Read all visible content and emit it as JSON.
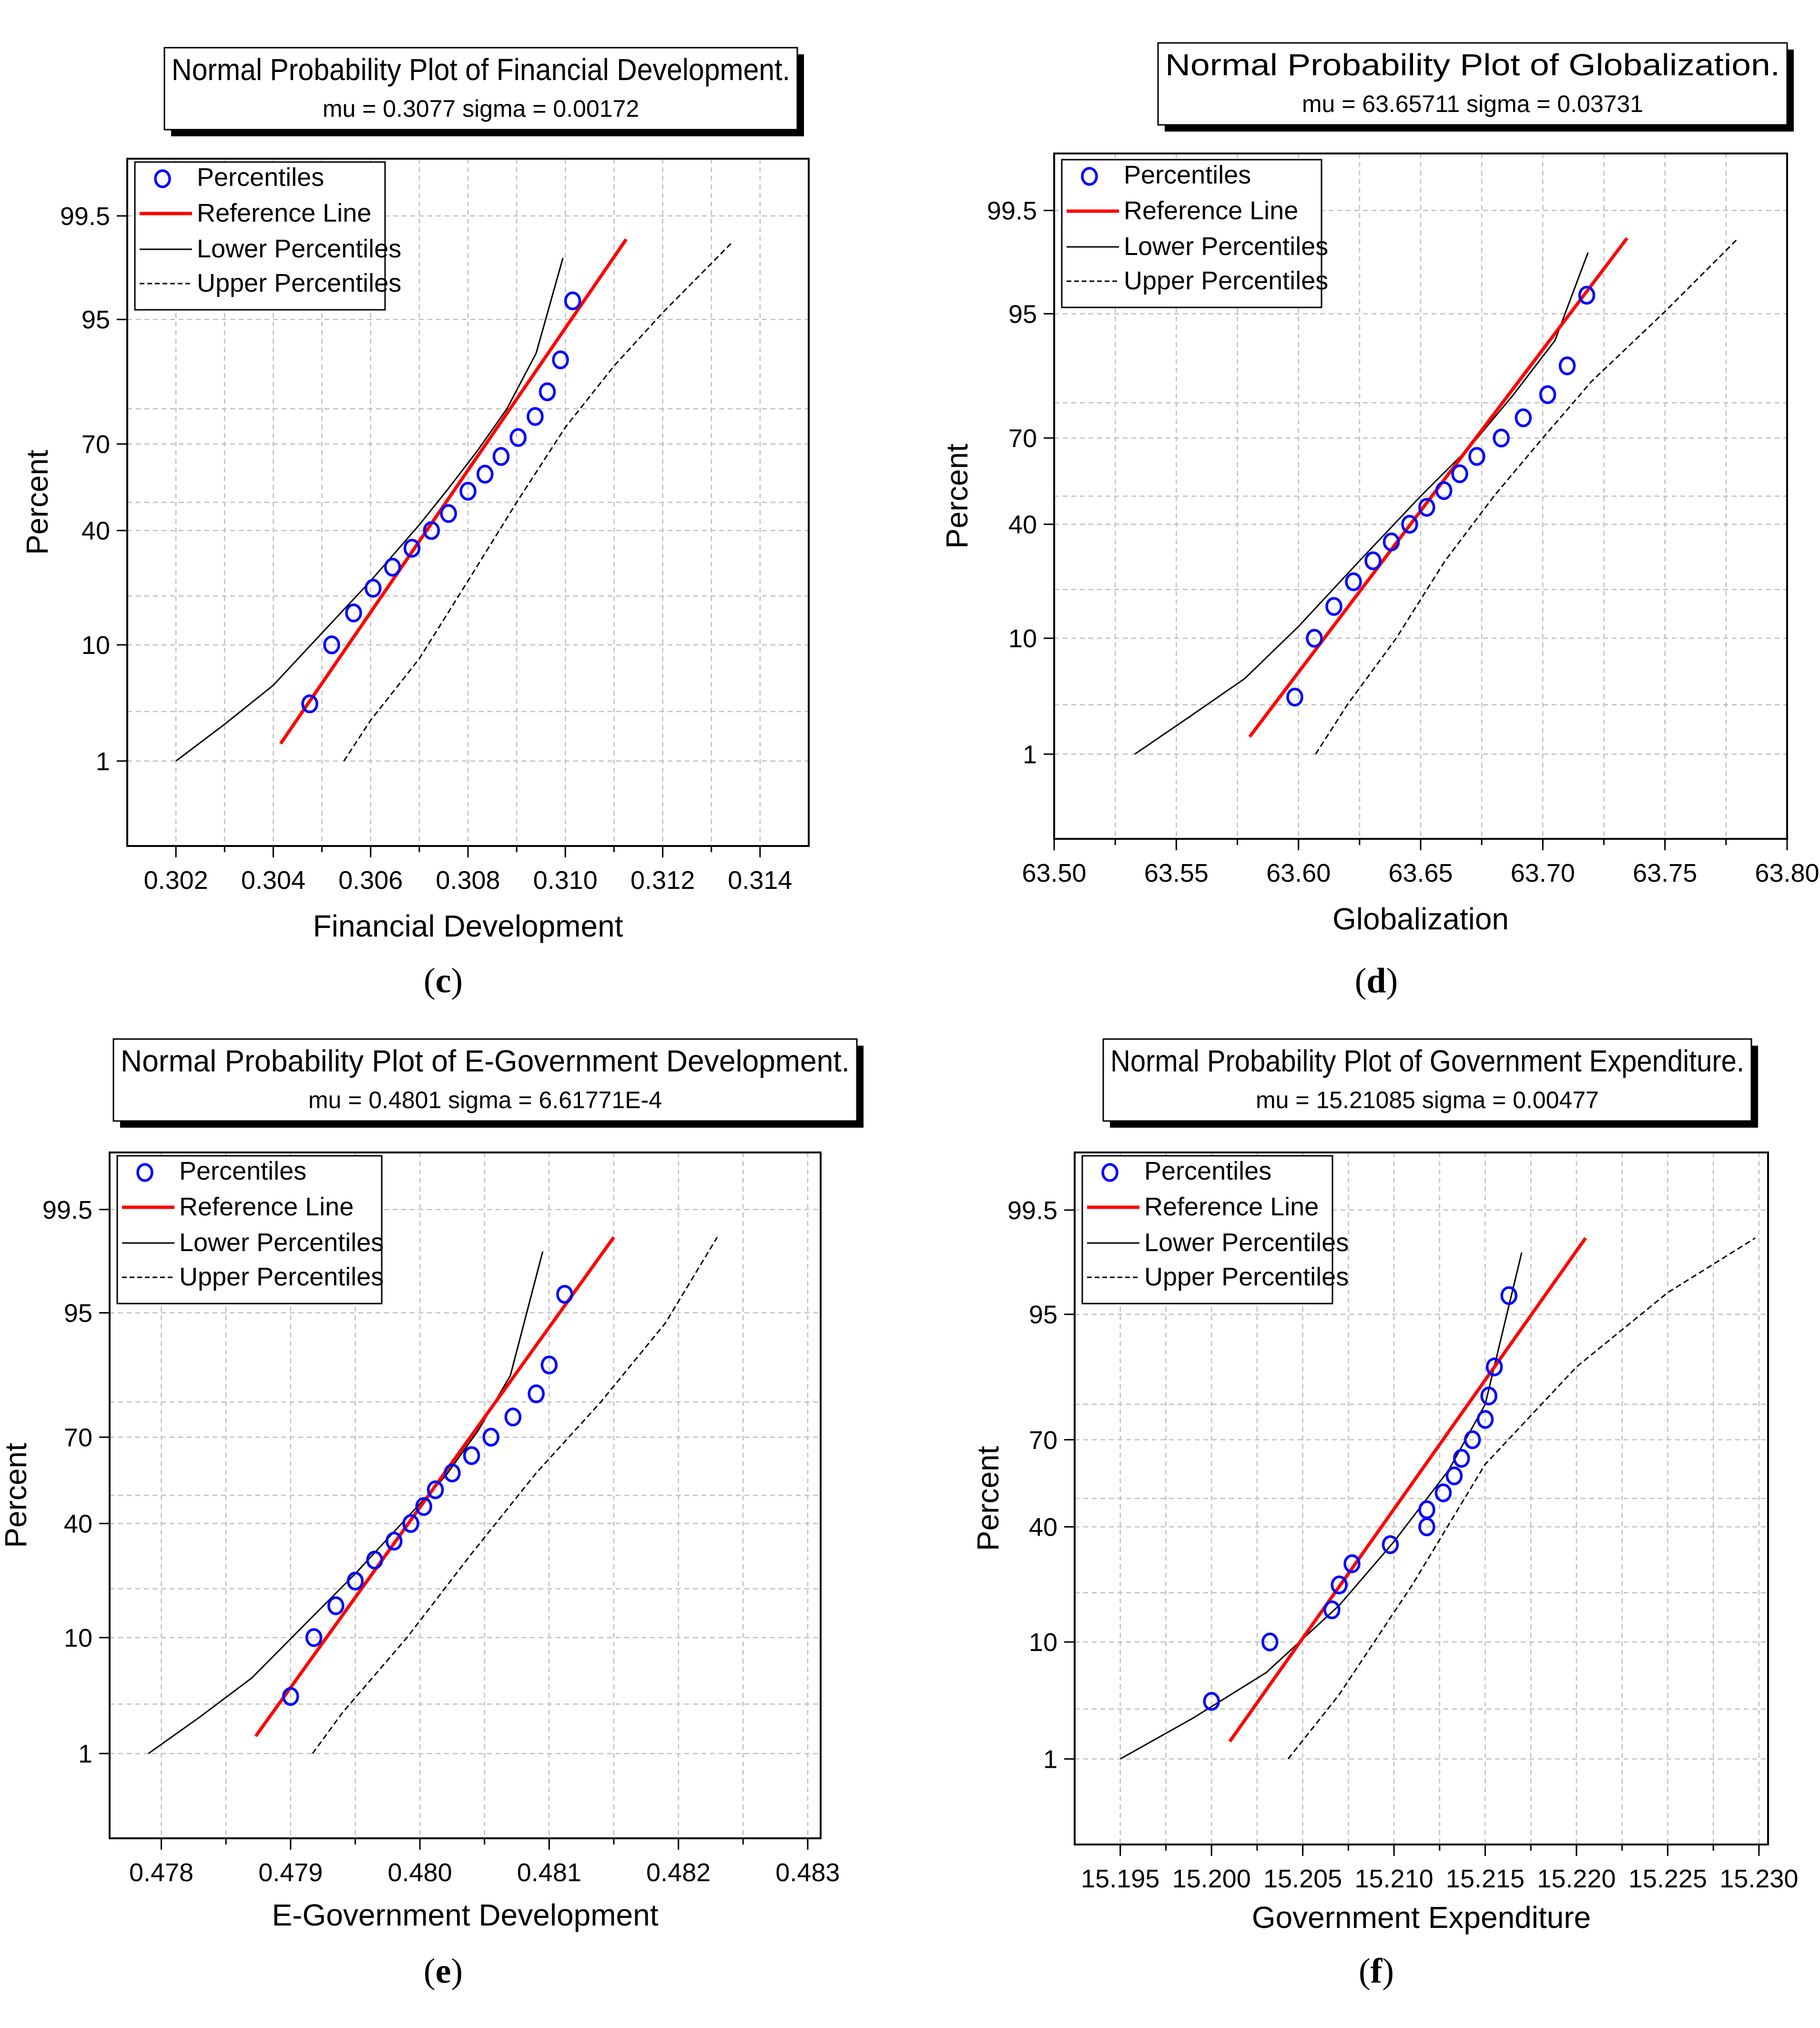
{
  "colors": {
    "percentiles": "#0000ff",
    "reference": "#ff0000",
    "envelope": "#000000",
    "grid": "#bfbfbf"
  },
  "legend": {
    "percentiles": "Percentiles",
    "reference": "Reference Line",
    "lower": "Lower Percentiles",
    "upper": "Upper Percentiles"
  },
  "ylabel": "Percent",
  "chart_data": [
    {
      "panel": "c",
      "type": "scatter",
      "title": "Normal Probability Plot of Financial Development.",
      "subtitle": "mu = 0.3077  sigma = 0.00172",
      "xlabel": "Financial Development",
      "ylabel": "Percent",
      "caption": "c",
      "xlim": [
        0.301,
        0.315
      ],
      "xticks": [
        0.302,
        0.304,
        0.306,
        0.308,
        0.31,
        0.312,
        0.314
      ],
      "xtick_labels": [
        "0.302",
        "0.304",
        "0.306",
        "0.308",
        "0.310",
        "0.312",
        "0.314"
      ],
      "xtick_minor_step": 0.001,
      "ylim": [
        0.1,
        99.9
      ],
      "yticks": [
        1,
        10,
        40,
        70,
        95,
        99.5
      ],
      "ytick_labels": [
        "1",
        "10",
        "40",
        "70",
        "95",
        "99.5"
      ],
      "legend_position": "top-left",
      "percentiles": {
        "x": [
          0.30475,
          0.3052,
          0.30565,
          0.30605,
          0.30645,
          0.30685,
          0.30725,
          0.3076,
          0.308,
          0.30835,
          0.30868,
          0.30903,
          0.30938,
          0.30963,
          0.3099,
          0.31015
        ],
        "y": [
          3.5,
          10,
          16,
          22,
          28,
          34,
          40,
          46,
          54,
          60,
          66,
          72,
          78,
          84,
          90,
          96.5
        ]
      },
      "reference_line": {
        "x": [
          0.30415,
          0.31125
        ],
        "y": [
          1.5,
          99.1
        ]
      },
      "lower_percentiles": {
        "x": [
          0.302,
          0.303,
          0.304,
          0.305,
          0.306,
          0.307,
          0.3076,
          0.3082,
          0.3088,
          0.3094,
          0.30995
        ],
        "y": [
          1,
          2.3,
          5,
          12,
          24,
          42,
          55,
          68,
          80,
          91,
          98.6
        ]
      },
      "upper_percentiles": {
        "x": [
          0.30545,
          0.306,
          0.307,
          0.308,
          0.309,
          0.31,
          0.311,
          0.312,
          0.3134
        ],
        "y": [
          1,
          2.5,
          8,
          24,
          50,
          75,
          89,
          95.6,
          99
        ]
      }
    },
    {
      "panel": "d",
      "type": "scatter",
      "title": "Normal Probability Plot of Globalization.",
      "subtitle": "mu = 63.65711  sigma = 0.03731",
      "xlabel": "Globalization",
      "ylabel": "Percent",
      "caption": "d",
      "xlim": [
        63.5,
        63.8
      ],
      "xticks": [
        63.5,
        63.55,
        63.6,
        63.65,
        63.7,
        63.75,
        63.8
      ],
      "xtick_labels": [
        "63.50",
        "63.55",
        "63.60",
        "63.65",
        "63.70",
        "63.75",
        "63.80"
      ],
      "xtick_minor_step": 0.025,
      "ylim": [
        0.1,
        99.9
      ],
      "yticks": [
        1,
        10,
        40,
        70,
        95,
        99.5
      ],
      "ytick_labels": [
        "1",
        "10",
        "40",
        "70",
        "95",
        "99.5"
      ],
      "legend_position": "top-left",
      "percentiles": {
        "x": [
          63.5985,
          63.6065,
          63.6145,
          63.6225,
          63.6305,
          63.638,
          63.6455,
          63.6525,
          63.6595,
          63.666,
          63.673,
          63.683,
          63.692,
          63.702,
          63.71,
          63.718
        ],
        "y": [
          3.5,
          10,
          16,
          22,
          28,
          34,
          40,
          46,
          52,
          58,
          64,
          70,
          76,
          82,
          88,
          96.5
        ]
      },
      "reference_line": {
        "x": [
          63.58,
          63.7345
        ],
        "y": [
          1.5,
          99.0
        ]
      },
      "lower_percentiles": {
        "x": [
          63.533,
          63.555,
          63.578,
          63.6,
          63.625,
          63.65,
          63.67,
          63.688,
          63.705,
          63.7185
        ],
        "y": [
          1,
          2.3,
          5,
          12,
          28,
          50,
          67,
          82,
          92,
          98.6
        ]
      },
      "upper_percentiles": {
        "x": [
          63.607,
          63.62,
          63.64,
          63.66,
          63.68,
          63.7,
          63.72,
          63.75,
          63.78
        ],
        "y": [
          1,
          3,
          10,
          28,
          50,
          70,
          85,
          95.2,
          99
        ]
      }
    },
    {
      "panel": "e",
      "type": "scatter",
      "title": "Normal Probability Plot of E-Government Development.",
      "subtitle": "mu = 0.4801  sigma = 6.61771E-4",
      "xlabel": "E-Government Development",
      "ylabel": "Percent",
      "caption": "e",
      "xlim": [
        0.4776,
        0.4831
      ],
      "xticks": [
        0.478,
        0.479,
        0.48,
        0.481,
        0.482,
        0.483
      ],
      "xtick_labels": [
        "0.478",
        "0.479",
        "0.480",
        "0.481",
        "0.482",
        "0.483"
      ],
      "xtick_minor_step": 0.0005,
      "ylim": [
        0.1,
        99.9
      ],
      "yticks": [
        1,
        10,
        40,
        70,
        95,
        99.5
      ],
      "ytick_labels": [
        "1",
        "10",
        "40",
        "70",
        "95",
        "99.5"
      ],
      "legend_position": "top-left",
      "percentiles": {
        "x": [
          0.479,
          0.47918,
          0.47935,
          0.4795,
          0.47965,
          0.4798,
          0.47993,
          0.48003,
          0.48012,
          0.48025,
          0.4804,
          0.48055,
          0.48072,
          0.4809,
          0.481,
          0.48112
        ],
        "y": [
          3.5,
          10,
          16,
          22,
          28,
          34,
          40,
          46,
          52,
          58,
          64,
          70,
          76,
          82,
          88,
          96.5
        ]
      },
      "reference_line": {
        "x": [
          0.47873,
          0.4815
        ],
        "y": [
          1.5,
          99.0
        ]
      },
      "lower_percentiles": {
        "x": [
          0.4779,
          0.4783,
          0.4787,
          0.4791,
          0.4795,
          0.4799,
          0.4802,
          0.48045,
          0.4807,
          0.48095
        ],
        "y": [
          1,
          2.3,
          5,
          12,
          24,
          42,
          57,
          72,
          86,
          98.6
        ]
      },
      "upper_percentiles": {
        "x": [
          0.47917,
          0.4794,
          0.4799,
          0.4804,
          0.4809,
          0.4814,
          0.4819,
          0.4823
        ],
        "y": [
          1,
          2.5,
          10,
          30,
          58,
          80,
          94,
          99
        ]
      }
    },
    {
      "panel": "f",
      "type": "scatter",
      "title": "Normal Probability Plot of Government Expenditure.",
      "subtitle": "mu = 15.21085  sigma = 0.00477",
      "xlabel": "Government Expenditure",
      "ylabel": "Percent",
      "caption": "f",
      "xlim": [
        15.1925,
        15.2305
      ],
      "xticks": [
        15.195,
        15.2,
        15.205,
        15.21,
        15.215,
        15.22,
        15.225,
        15.23
      ],
      "xtick_labels": [
        "15.195",
        "15.200",
        "15.205",
        "15.210",
        "15.215",
        "15.220",
        "15.225",
        "15.230"
      ],
      "xtick_minor_step": 0.0025,
      "ylim": [
        0.1,
        99.9
      ],
      "yticks": [
        1,
        10,
        40,
        70,
        95,
        99.5
      ],
      "ytick_labels": [
        "1",
        "10",
        "40",
        "70",
        "95",
        "99.5"
      ],
      "legend_position": "top-left",
      "percentiles": {
        "x": [
          15.2,
          15.2032,
          15.2066,
          15.207,
          15.2077,
          15.2098,
          15.2118,
          15.2118,
          15.2127,
          15.2133,
          15.2137,
          15.2143,
          15.215,
          15.2152,
          15.2155,
          15.2163
        ],
        "y": [
          3.5,
          10,
          16,
          22,
          28,
          34,
          40,
          46,
          52,
          58,
          64,
          70,
          76,
          82,
          88,
          96.5
        ]
      },
      "reference_line": {
        "x": [
          15.201,
          15.2205
        ],
        "y": [
          1.5,
          99.0
        ]
      },
      "lower_percentiles": {
        "x": [
          15.195,
          15.199,
          15.203,
          15.207,
          15.21,
          15.213,
          15.215,
          15.217
        ],
        "y": [
          1,
          2.5,
          6,
          17,
          35,
          60,
          80,
          98.6
        ]
      },
      "upper_percentiles": {
        "x": [
          15.2042,
          15.207,
          15.211,
          15.215,
          15.22,
          15.225,
          15.2298
        ],
        "y": [
          1,
          4,
          22,
          62,
          88,
          96.7,
          99
        ]
      }
    }
  ]
}
